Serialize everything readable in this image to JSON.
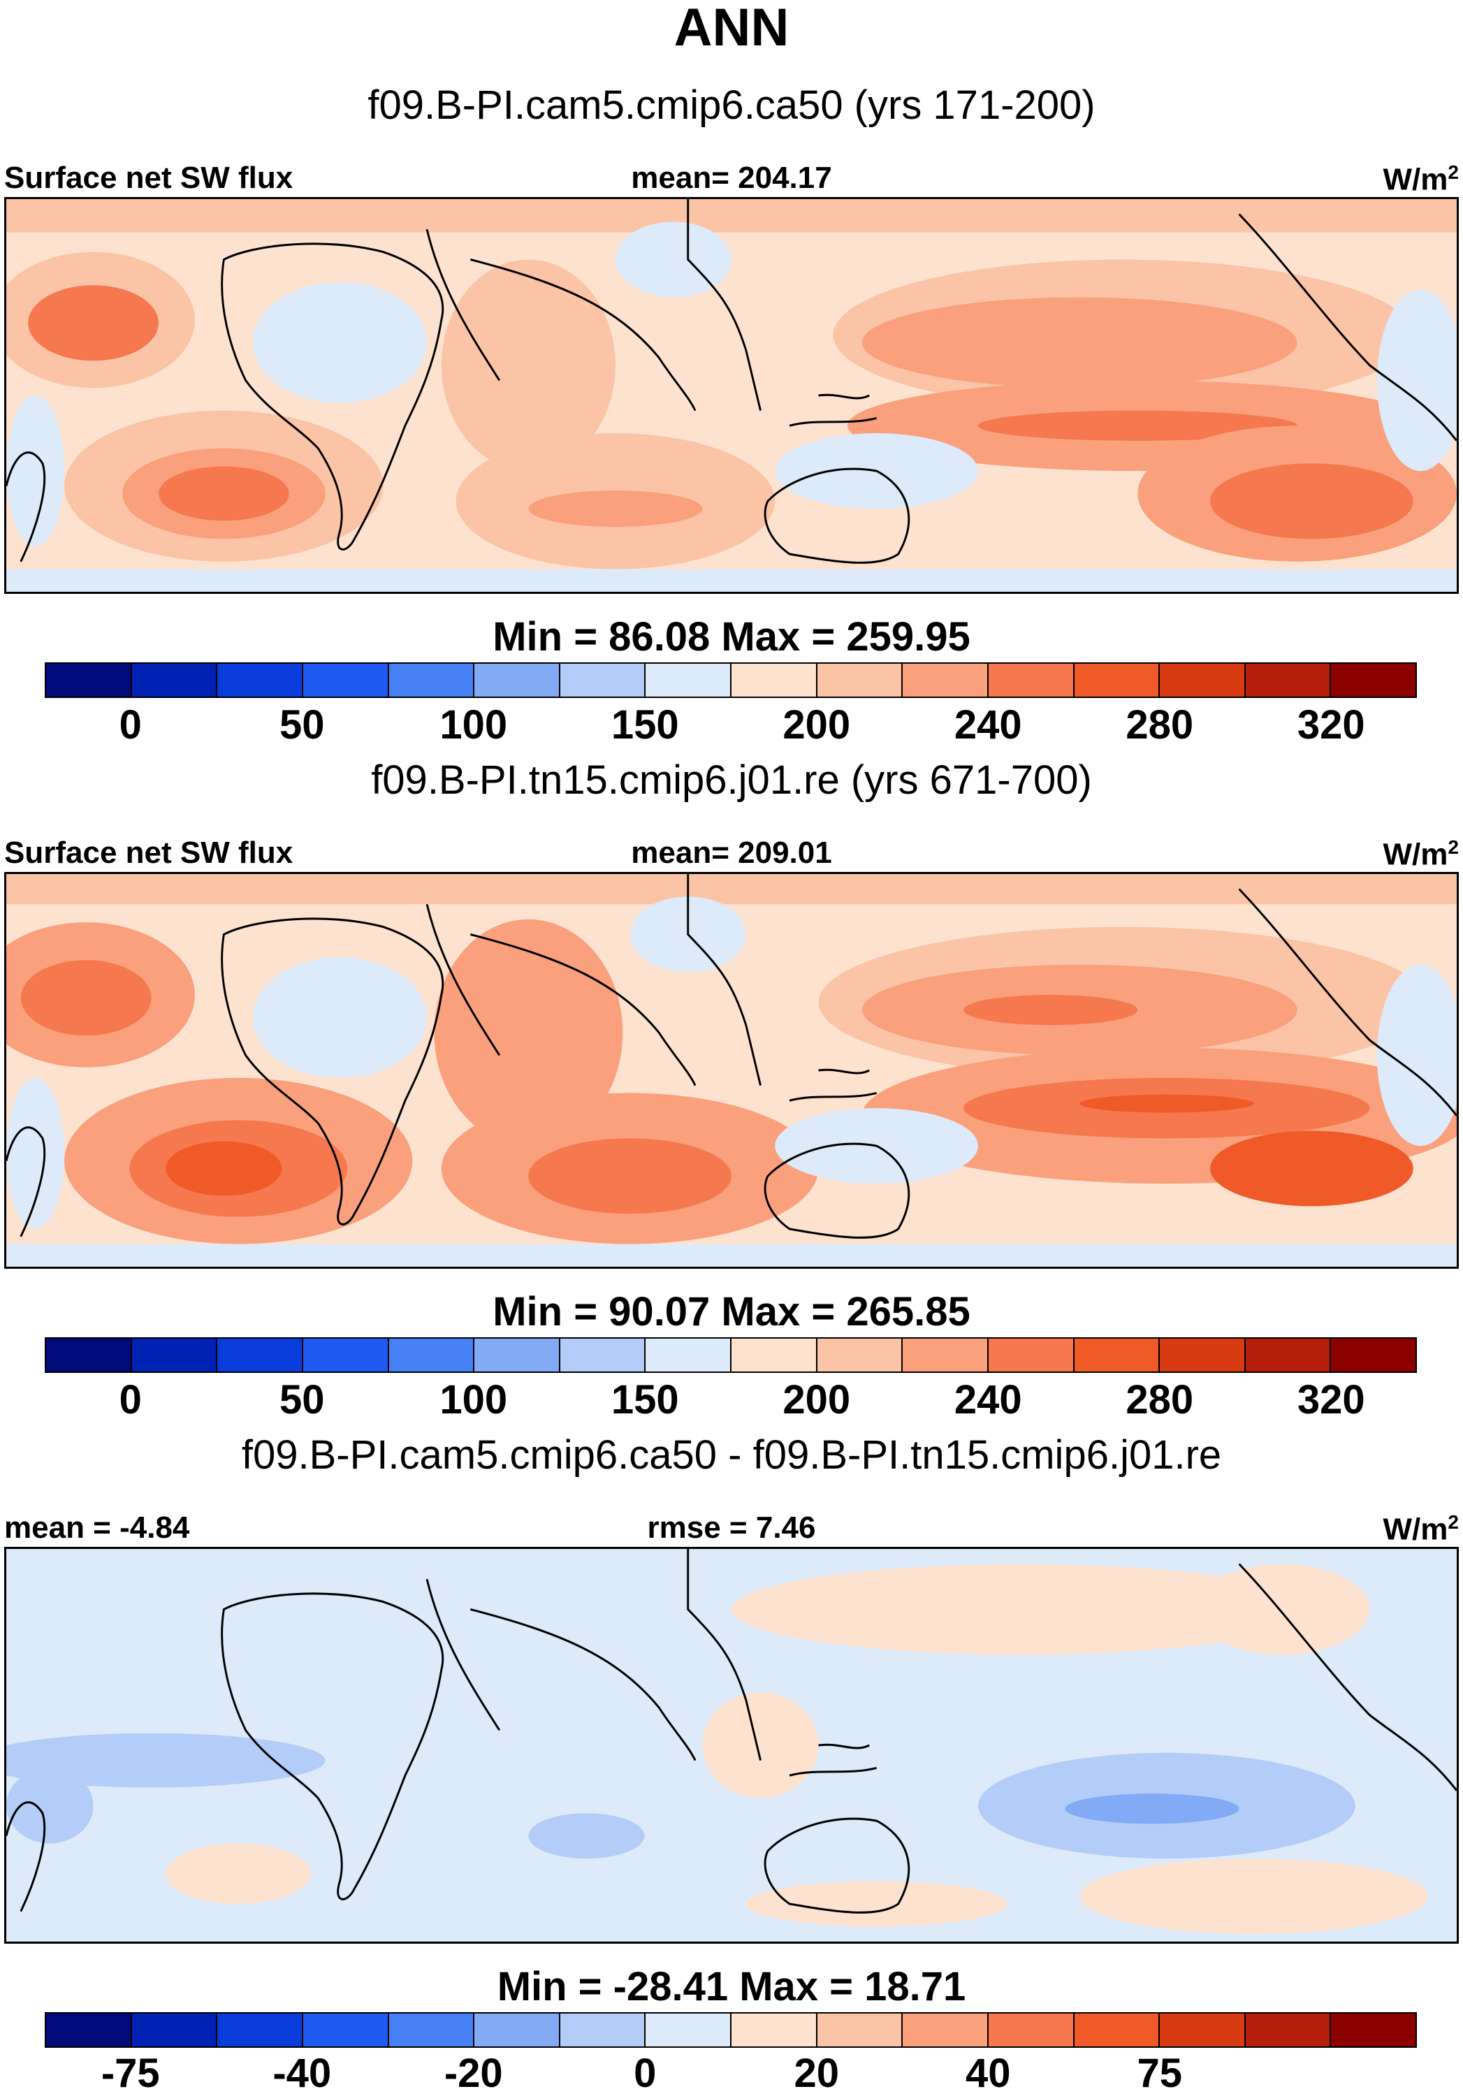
{
  "title": "ANN",
  "units": "W/m",
  "units_sup": "2",
  "chart_data": [
    {
      "type": "heatmap",
      "case": "f09.B-PI.cam5.cmip6.ca50 (yrs 171-200)",
      "variable": "Surface net SW flux",
      "mean_label": "mean= 204.17",
      "minmax": "Min =  86.08 Max = 259.95",
      "min": 86.08,
      "max": 259.95,
      "mean": 204.17,
      "colorbar_levels": [
        "0",
        "50",
        "100",
        "150",
        "200",
        "240",
        "280",
        "320"
      ]
    },
    {
      "type": "heatmap",
      "case": "f09.B-PI.tn15.cmip6.j01.re (yrs 671-700)",
      "variable": "Surface net SW flux",
      "mean_label": "mean= 209.01",
      "minmax": "Min =  90.07 Max = 265.85",
      "min": 90.07,
      "max": 265.85,
      "mean": 209.01,
      "colorbar_levels": [
        "0",
        "50",
        "100",
        "150",
        "200",
        "240",
        "280",
        "320"
      ]
    },
    {
      "type": "heatmap",
      "case": "f09.B-PI.cam5.cmip6.ca50 - f09.B-PI.tn15.cmip6.j01.re",
      "mean_label": "mean =  -4.84",
      "rmse_label": "rmse =   7.46",
      "minmax": "Min = -28.41 Max =  18.71",
      "min": -28.41,
      "max": 18.71,
      "mean": -4.84,
      "rmse": 7.46,
      "colorbar_levels": [
        "-75",
        "-40",
        "-20",
        "0",
        "20",
        "40",
        "75"
      ]
    }
  ],
  "colors": {
    "abs_scale": [
      "#000a78",
      "#0022b4",
      "#0a3cdc",
      "#1e5af0",
      "#4682f5",
      "#82aaf5",
      "#b4ccf8",
      "#dceafa",
      "#fde3cf",
      "#fcc4a6",
      "#faa07c",
      "#f5784e",
      "#f05a28",
      "#d83a12",
      "#b41e0a",
      "#8c0000"
    ],
    "diff_scale": [
      "#000a78",
      "#0022b4",
      "#0a3cdc",
      "#1e5af0",
      "#4682f5",
      "#82aaf5",
      "#b4ccf8",
      "#dceafa",
      "#fde3cf",
      "#fcc4a6",
      "#faa07c",
      "#f5784e",
      "#f05a28",
      "#d83a12",
      "#b41e0a",
      "#8c0000"
    ],
    "map_base_abs": "#fde3cf",
    "map_base_diff": "#dceafa",
    "coast": "#000000"
  }
}
